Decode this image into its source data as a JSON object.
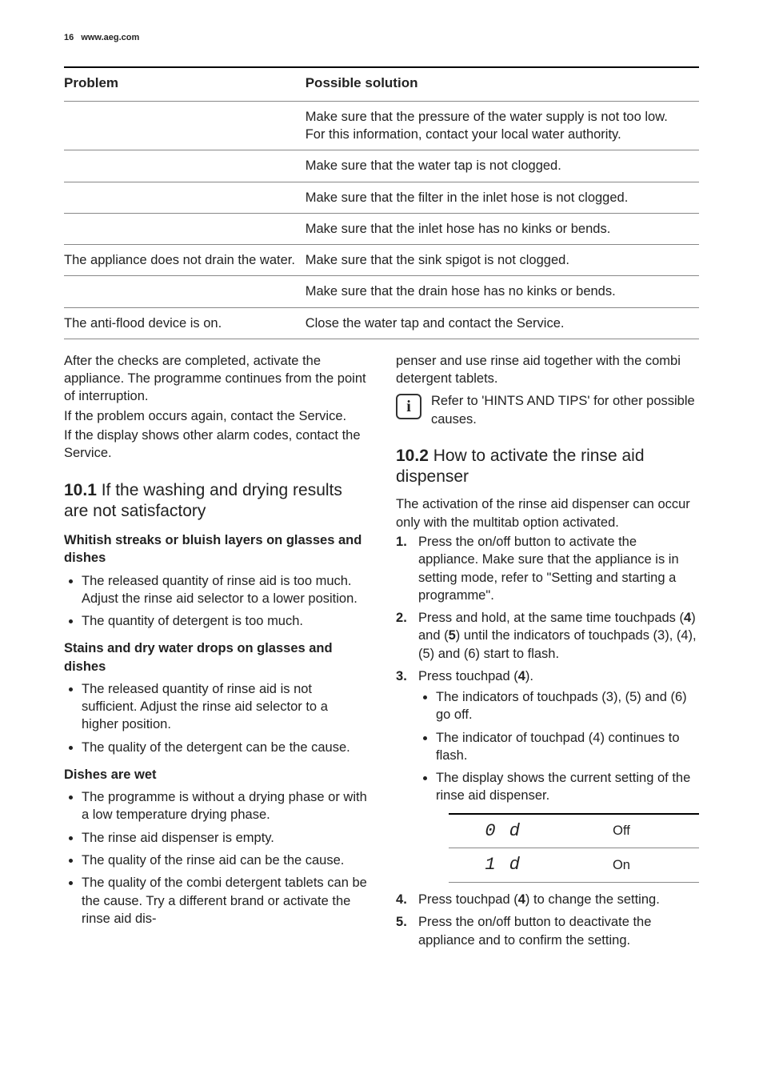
{
  "header": {
    "page_number": "16",
    "site": "www.aeg.com"
  },
  "trouble_table": {
    "columns": [
      "Problem",
      "Possible solution"
    ],
    "rows": [
      [
        "",
        "Make sure that the pressure of the water supply is not too low. For this information, contact your local water authority."
      ],
      [
        "",
        "Make sure that the water tap is not clogged."
      ],
      [
        "",
        "Make sure that the filter in the inlet hose is not clogged."
      ],
      [
        "",
        "Make sure that the inlet hose has no kinks or bends."
      ],
      [
        "The appliance does not drain the water.",
        "Make sure that the sink spigot is not clogged."
      ],
      [
        "",
        "Make sure that the drain hose has no kinks or bends."
      ],
      [
        "The anti-flood device is on.",
        "Close the water tap and contact the Service."
      ]
    ]
  },
  "left": {
    "after_checks_1": "After the checks are completed, activate the appliance. The programme continues from the point of interruption.",
    "after_checks_2": "If the problem occurs again, contact the Service.",
    "after_checks_3": "If the display shows other alarm codes, contact the Service.",
    "sec_101_num": "10.1",
    "sec_101_title": " If the washing and drying results are not satisfactory",
    "sub_whitish": "Whitish streaks or bluish layers on glasses and dishes",
    "whitish_items": [
      "The released quantity of rinse aid is too much. Adjust the rinse aid selector to a lower position.",
      "The quantity of detergent is too much."
    ],
    "sub_stains": "Stains and dry water drops on glasses and dishes",
    "stains_items": [
      "The released quantity of rinse aid is not sufficient. Adjust the rinse aid selector to a higher position.",
      "The quality of the detergent can be the cause."
    ],
    "sub_wet": "Dishes are wet",
    "wet_items": [
      "The programme is without a drying phase or with a low temperature drying phase.",
      "The rinse aid dispenser is empty.",
      "The quality of the rinse aid can be the cause.",
      "The quality of the combi detergent tablets can be the cause. Try a different brand or activate the rinse aid dis-"
    ]
  },
  "right": {
    "cont": "penser and use rinse aid together with the combi detergent tablets.",
    "info_icon": "i",
    "info_text": "Refer to 'HINTS AND TIPS' for other possible causes.",
    "sec_102_num": "10.2",
    "sec_102_title": " How to activate the rinse aid dispenser",
    "intro": "The activation of the rinse aid dispenser can occur only with the multitab option activated.",
    "step1": "Press the on/off button to activate the appliance. Make sure that the appliance is in setting mode, refer to \"Setting and starting a programme\".",
    "step2_a": "Press and hold, at the same time touchpads (",
    "step2_b": ") and (",
    "step2_c": ") until the indicators of touchpads (3), (4), (5) and (6) start to flash.",
    "step2_n1": "4",
    "step2_n2": "5",
    "step3_a": "Press touchpad (",
    "step3_b": ").",
    "step3_n": "4",
    "step3_items": [
      "The indicators of touchpads (3), (5) and (6) go off.",
      "The indicator of touchpad (4) continues to flash.",
      "The display shows the current setting of the rinse aid dispenser."
    ],
    "display_table": {
      "rows": [
        {
          "code": "0 d",
          "label": "Off"
        },
        {
          "code": "1 d",
          "label": "On"
        }
      ]
    },
    "step4_a": "Press touchpad (",
    "step4_b": ") to change the setting.",
    "step4_n": "4",
    "step5": "Press the on/off button to deactivate the appliance and to confirm the setting."
  }
}
